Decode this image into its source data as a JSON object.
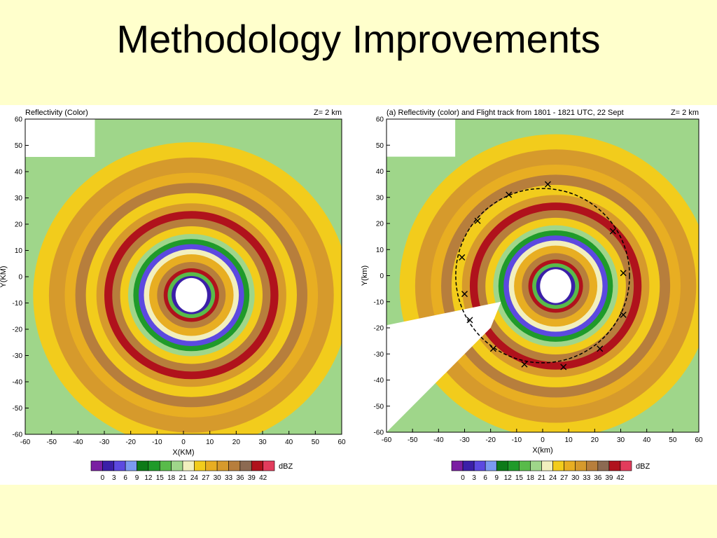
{
  "slide": {
    "title": "Methodology Improvements"
  },
  "colorbar": {
    "unit": "dBZ",
    "ticks": [
      "0",
      "3",
      "6",
      "9",
      "12",
      "15",
      "18",
      "21",
      "24",
      "27",
      "30",
      "33",
      "36",
      "39",
      "42"
    ],
    "colors": [
      "#7a1fa2",
      "#3b1fa8",
      "#5c49e0",
      "#7b9af0",
      "#0d7a18",
      "#1f9a2a",
      "#59bb4a",
      "#9fd68a",
      "#f2efbe",
      "#f2cc1c",
      "#e8ae22",
      "#d69a2c",
      "#b77e3c",
      "#8c6a52",
      "#b0121c",
      "#e23c5c"
    ]
  },
  "chart_data": [
    {
      "type": "heatmap",
      "title": "Reflectivity (Color)",
      "level": "Z= 2 km",
      "xlabel": "X(KM)",
      "ylabel": "Y(KM)",
      "xlim": [
        -60,
        60
      ],
      "ylim": [
        -60,
        60
      ],
      "xticks": [
        "-60",
        "-50",
        "-40",
        "-30",
        "-20",
        "-10",
        "0",
        "10",
        "20",
        "30",
        "40",
        "50",
        "60"
      ],
      "yticks": [
        "60",
        "50",
        "40",
        "30",
        "20",
        "10",
        "0",
        "-10",
        "-20",
        "-30",
        "-40",
        "-50",
        "-60"
      ],
      "eye_center": [
        3,
        -7
      ],
      "rings_km": [
        {
          "r": 10,
          "dbz": 42
        },
        {
          "r": 22,
          "dbz": 18
        },
        {
          "r": 33,
          "dbz": 42
        },
        {
          "r": 44,
          "dbz": 36
        }
      ]
    },
    {
      "type": "heatmap",
      "title": "(a) Reflectivity (color) and Flight track from 1801 - 1821 UTC, 22 Sept",
      "level": "Z=  2 km",
      "xlabel": "X(km)",
      "ylabel": "Y(km)",
      "xlim": [
        -60,
        60
      ],
      "ylim": [
        -60,
        60
      ],
      "xticks": [
        "-60",
        "-50",
        "-40",
        "-30",
        "-20",
        "-10",
        "0",
        "10",
        "20",
        "30",
        "40",
        "50",
        "60"
      ],
      "yticks": [
        "60",
        "50",
        "40",
        "30",
        "20",
        "10",
        "0",
        "-10",
        "-20",
        "-30",
        "-40",
        "-50",
        "-60"
      ],
      "eye_center": [
        5,
        -4
      ],
      "rings_km": [
        {
          "r": 10,
          "dbz": 42
        },
        {
          "r": 22,
          "dbz": 18
        },
        {
          "r": 33,
          "dbz": 42
        },
        {
          "r": 44,
          "dbz": 36
        }
      ],
      "flight_track": {
        "center": [
          0,
          0
        ],
        "points": [
          [
            2,
            35
          ],
          [
            -13,
            31
          ],
          [
            -25,
            21
          ],
          [
            -31,
            7
          ],
          [
            -30,
            -7
          ],
          [
            -28,
            -17
          ],
          [
            -19,
            -28
          ],
          [
            -7,
            -34
          ],
          [
            8,
            -35
          ],
          [
            22,
            -28
          ],
          [
            31,
            -15
          ],
          [
            31,
            1
          ],
          [
            27,
            17
          ]
        ]
      }
    }
  ]
}
